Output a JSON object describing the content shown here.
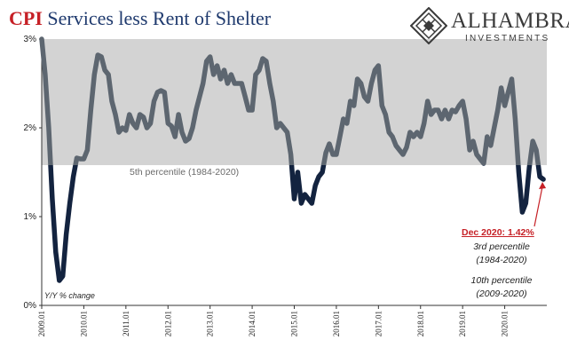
{
  "header": {
    "title_part1": "CPI",
    "title_part2": "Services less Rent of Shelter"
  },
  "logo": {
    "brand": "ALHAMBRA",
    "sub": "INVESTMENTS",
    "icon": "diamond-lattice-icon"
  },
  "colors": {
    "band": "#d3d3d3",
    "line_above_band": "#5d6670",
    "line_below_band": "#13233f",
    "annotation_red": "#c62026"
  },
  "chart_data": {
    "type": "line",
    "title": "CPI Services less Rent of Shelter",
    "ylabel": "Y/Y % change",
    "ylim": [
      0,
      3
    ],
    "yticks": [
      0,
      1,
      2,
      3
    ],
    "ytick_labels": [
      "0%",
      "1%",
      "2%",
      "3%"
    ],
    "xlim": [
      2009.0,
      2021.0
    ],
    "xticks": [
      2009,
      2010,
      2011,
      2012,
      2013,
      2014,
      2015,
      2016,
      2017,
      2018,
      2019,
      2020
    ],
    "xtick_labels": [
      "2009.01",
      "2010.01",
      "2011.01",
      "2012.01",
      "2013.01",
      "2014.01",
      "2015.01",
      "2016.01",
      "2017.01",
      "2018.01",
      "2019.01",
      "2020.01"
    ],
    "band": {
      "from": 1.58,
      "to": 3.0,
      "label": "5th percentile (1984-2020)"
    },
    "series": [
      {
        "values": [
          [
            2009.0,
            3.0
          ],
          [
            2009.083,
            2.6
          ],
          [
            2009.167,
            2.0
          ],
          [
            2009.25,
            1.2
          ],
          [
            2009.333,
            0.6
          ],
          [
            2009.417,
            0.28
          ],
          [
            2009.5,
            0.33
          ],
          [
            2009.583,
            0.8
          ],
          [
            2009.667,
            1.15
          ],
          [
            2009.75,
            1.45
          ],
          [
            2009.833,
            1.66
          ],
          [
            2009.917,
            1.65
          ],
          [
            2010.0,
            1.65
          ],
          [
            2010.083,
            1.75
          ],
          [
            2010.167,
            2.2
          ],
          [
            2010.25,
            2.6
          ],
          [
            2010.333,
            2.82
          ],
          [
            2010.417,
            2.8
          ],
          [
            2010.5,
            2.65
          ],
          [
            2010.583,
            2.6
          ],
          [
            2010.667,
            2.3
          ],
          [
            2010.75,
            2.15
          ],
          [
            2010.833,
            1.95
          ],
          [
            2010.917,
            2.0
          ],
          [
            2011.0,
            1.97
          ],
          [
            2011.083,
            2.15
          ],
          [
            2011.167,
            2.05
          ],
          [
            2011.25,
            2.0
          ],
          [
            2011.333,
            2.15
          ],
          [
            2011.417,
            2.12
          ],
          [
            2011.5,
            2.0
          ],
          [
            2011.583,
            2.05
          ],
          [
            2011.667,
            2.3
          ],
          [
            2011.75,
            2.4
          ],
          [
            2011.833,
            2.42
          ],
          [
            2011.917,
            2.4
          ],
          [
            2012.0,
            2.05
          ],
          [
            2012.083,
            2.02
          ],
          [
            2012.167,
            1.9
          ],
          [
            2012.25,
            2.15
          ],
          [
            2012.333,
            1.95
          ],
          [
            2012.417,
            1.85
          ],
          [
            2012.5,
            1.88
          ],
          [
            2012.583,
            2.0
          ],
          [
            2012.667,
            2.2
          ],
          [
            2012.75,
            2.35
          ],
          [
            2012.833,
            2.5
          ],
          [
            2012.917,
            2.75
          ],
          [
            2013.0,
            2.8
          ],
          [
            2013.083,
            2.6
          ],
          [
            2013.167,
            2.7
          ],
          [
            2013.25,
            2.55
          ],
          [
            2013.333,
            2.65
          ],
          [
            2013.417,
            2.5
          ],
          [
            2013.5,
            2.6
          ],
          [
            2013.583,
            2.5
          ],
          [
            2013.667,
            2.5
          ],
          [
            2013.75,
            2.5
          ],
          [
            2013.833,
            2.35
          ],
          [
            2013.917,
            2.2
          ],
          [
            2014.0,
            2.2
          ],
          [
            2014.083,
            2.6
          ],
          [
            2014.167,
            2.65
          ],
          [
            2014.25,
            2.78
          ],
          [
            2014.333,
            2.75
          ],
          [
            2014.417,
            2.5
          ],
          [
            2014.5,
            2.3
          ],
          [
            2014.583,
            2.0
          ],
          [
            2014.667,
            2.05
          ],
          [
            2014.75,
            2.0
          ],
          [
            2014.833,
            1.95
          ],
          [
            2014.917,
            1.7
          ],
          [
            2015.0,
            1.2
          ],
          [
            2015.083,
            1.5
          ],
          [
            2015.167,
            1.15
          ],
          [
            2015.25,
            1.25
          ],
          [
            2015.333,
            1.2
          ],
          [
            2015.417,
            1.15
          ],
          [
            2015.5,
            1.35
          ],
          [
            2015.583,
            1.45
          ],
          [
            2015.667,
            1.5
          ],
          [
            2015.75,
            1.72
          ],
          [
            2015.833,
            1.82
          ],
          [
            2015.917,
            1.7
          ],
          [
            2016.0,
            1.7
          ],
          [
            2016.083,
            1.9
          ],
          [
            2016.167,
            2.1
          ],
          [
            2016.25,
            2.05
          ],
          [
            2016.333,
            2.3
          ],
          [
            2016.417,
            2.25
          ],
          [
            2016.5,
            2.55
          ],
          [
            2016.583,
            2.5
          ],
          [
            2016.667,
            2.35
          ],
          [
            2016.75,
            2.3
          ],
          [
            2016.833,
            2.5
          ],
          [
            2016.917,
            2.65
          ],
          [
            2017.0,
            2.7
          ],
          [
            2017.083,
            2.25
          ],
          [
            2017.167,
            2.15
          ],
          [
            2017.25,
            1.95
          ],
          [
            2017.333,
            1.9
          ],
          [
            2017.417,
            1.8
          ],
          [
            2017.5,
            1.75
          ],
          [
            2017.583,
            1.7
          ],
          [
            2017.667,
            1.78
          ],
          [
            2017.75,
            1.95
          ],
          [
            2017.833,
            1.9
          ],
          [
            2017.917,
            1.95
          ],
          [
            2018.0,
            1.9
          ],
          [
            2018.083,
            2.05
          ],
          [
            2018.167,
            2.3
          ],
          [
            2018.25,
            2.15
          ],
          [
            2018.333,
            2.2
          ],
          [
            2018.417,
            2.2
          ],
          [
            2018.5,
            2.1
          ],
          [
            2018.583,
            2.2
          ],
          [
            2018.667,
            2.1
          ],
          [
            2018.75,
            2.2
          ],
          [
            2018.833,
            2.18
          ],
          [
            2018.917,
            2.25
          ],
          [
            2019.0,
            2.3
          ],
          [
            2019.083,
            2.1
          ],
          [
            2019.167,
            1.75
          ],
          [
            2019.25,
            1.85
          ],
          [
            2019.333,
            1.7
          ],
          [
            2019.417,
            1.65
          ],
          [
            2019.5,
            1.6
          ],
          [
            2019.583,
            1.9
          ],
          [
            2019.667,
            1.8
          ],
          [
            2019.75,
            2.0
          ],
          [
            2019.833,
            2.2
          ],
          [
            2019.917,
            2.45
          ],
          [
            2020.0,
            2.25
          ],
          [
            2020.083,
            2.4
          ],
          [
            2020.167,
            2.55
          ],
          [
            2020.25,
            2.1
          ],
          [
            2020.333,
            1.5
          ],
          [
            2020.417,
            1.05
          ],
          [
            2020.5,
            1.15
          ],
          [
            2020.583,
            1.55
          ],
          [
            2020.667,
            1.85
          ],
          [
            2020.75,
            1.75
          ],
          [
            2020.833,
            1.45
          ],
          [
            2020.917,
            1.42
          ]
        ]
      }
    ],
    "annotations": {
      "last_value_label": "Dec 2020: 1.42%",
      "pct3_line1": "3rd percentile",
      "pct3_line2": "(1984-2020)",
      "pct10_line1": "10th percentile",
      "pct10_line2": "(2009-2020)"
    }
  }
}
